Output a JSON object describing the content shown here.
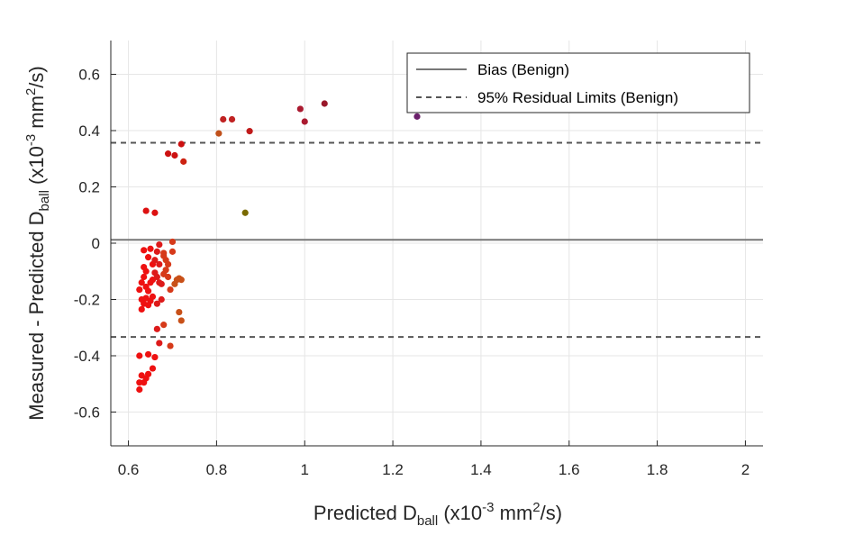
{
  "chart_data": {
    "type": "scatter",
    "title": "",
    "xlabel": {
      "main": "Predicted D",
      "sub": "ball",
      "units_pre": " (x10",
      "exp": "-3",
      "units_mid": " mm",
      "exp2": "2",
      "units_post": "/s)"
    },
    "ylabel": {
      "main": "Measured - Predicted D",
      "sub": "ball",
      "units_pre": " (x10",
      "exp": "-3",
      "units_mid": " mm",
      "exp2": "2",
      "units_post": "/s)"
    },
    "xlim": [
      0.56,
      2.04
    ],
    "ylim": [
      -0.72,
      0.72
    ],
    "xticks": [
      0.6,
      0.8,
      1,
      1.2,
      1.4,
      1.6,
      1.8,
      2
    ],
    "xtick_labels": [
      "0.6",
      "0.8",
      "1",
      "1.2",
      "1.4",
      "1.6",
      "1.8",
      "2"
    ],
    "yticks": [
      -0.6,
      -0.4,
      -0.2,
      0,
      0.2,
      0.4,
      0.6
    ],
    "ytick_labels": [
      "-0.6",
      "-0.4",
      "-0.2",
      "0",
      "0.2",
      "0.4",
      "0.6"
    ],
    "grid": true,
    "legend_position": "top-right",
    "reference_lines": [
      {
        "name": "Bias (Benign)",
        "y": 0.012,
        "style": "solid",
        "color": "#777777"
      },
      {
        "name": "95% Residual Limits (Benign)",
        "y": [
          0.357,
          -0.333
        ],
        "style": "dashed",
        "color": "#555555"
      }
    ],
    "points": [
      [
        0.64,
        0.115,
        "#dd1111"
      ],
      [
        0.66,
        0.108,
        "#dd1111"
      ],
      [
        0.865,
        0.108,
        "#7a6a00"
      ],
      [
        0.69,
        0.318,
        "#cc1111"
      ],
      [
        0.705,
        0.312,
        "#cc1111"
      ],
      [
        0.72,
        0.352,
        "#cc1111"
      ],
      [
        0.725,
        0.29,
        "#cc2211"
      ],
      [
        0.805,
        0.39,
        "#c0501a"
      ],
      [
        0.815,
        0.44,
        "#c02222"
      ],
      [
        0.835,
        0.44,
        "#c02222"
      ],
      [
        0.875,
        0.398,
        "#c01a1a"
      ],
      [
        0.99,
        0.477,
        "#aa1a30"
      ],
      [
        1.0,
        0.432,
        "#aa1a30"
      ],
      [
        1.045,
        0.496,
        "#99182a"
      ],
      [
        1.255,
        0.45,
        "#6a1f6a"
      ],
      [
        0.635,
        -0.025,
        "#ee1111"
      ],
      [
        0.65,
        -0.02,
        "#ee1111"
      ],
      [
        0.67,
        -0.005,
        "#dd1a1a"
      ],
      [
        0.7,
        0.005,
        "#d63a1a"
      ],
      [
        0.635,
        -0.085,
        "#ee1111"
      ],
      [
        0.64,
        -0.1,
        "#ee1111"
      ],
      [
        0.645,
        -0.05,
        "#ee1111"
      ],
      [
        0.655,
        -0.075,
        "#ee1111"
      ],
      [
        0.66,
        -0.06,
        "#dd1a1a"
      ],
      [
        0.665,
        -0.03,
        "#dd1a1a"
      ],
      [
        0.67,
        -0.075,
        "#dd1a1a"
      ],
      [
        0.68,
        -0.045,
        "#d63a1a"
      ],
      [
        0.685,
        -0.06,
        "#d63a1a"
      ],
      [
        0.69,
        -0.075,
        "#d63a1a"
      ],
      [
        0.7,
        -0.03,
        "#d63a1a"
      ],
      [
        0.68,
        -0.035,
        "#d63a1a"
      ],
      [
        0.625,
        -0.165,
        "#ee1111"
      ],
      [
        0.63,
        -0.14,
        "#ee1111"
      ],
      [
        0.635,
        -0.12,
        "#ee1111"
      ],
      [
        0.64,
        -0.155,
        "#ee1111"
      ],
      [
        0.645,
        -0.17,
        "#ee1111"
      ],
      [
        0.65,
        -0.14,
        "#ee1111"
      ],
      [
        0.655,
        -0.13,
        "#ee1111"
      ],
      [
        0.66,
        -0.105,
        "#dd1a1a"
      ],
      [
        0.665,
        -0.12,
        "#dd1a1a"
      ],
      [
        0.67,
        -0.14,
        "#dd1a1a"
      ],
      [
        0.675,
        -0.145,
        "#dd1a1a"
      ],
      [
        0.68,
        -0.11,
        "#d63a1a"
      ],
      [
        0.685,
        -0.095,
        "#d63a1a"
      ],
      [
        0.69,
        -0.12,
        "#d63a1a"
      ],
      [
        0.695,
        -0.165,
        "#d63a1a"
      ],
      [
        0.71,
        -0.13,
        "#c85018"
      ],
      [
        0.715,
        -0.125,
        "#c85018"
      ],
      [
        0.72,
        -0.13,
        "#c85018"
      ],
      [
        0.705,
        -0.145,
        "#c85018"
      ],
      [
        0.63,
        -0.2,
        "#ee1111"
      ],
      [
        0.635,
        -0.215,
        "#ee1111"
      ],
      [
        0.64,
        -0.195,
        "#ee1111"
      ],
      [
        0.645,
        -0.22,
        "#ee1111"
      ],
      [
        0.65,
        -0.205,
        "#ee1111"
      ],
      [
        0.655,
        -0.19,
        "#ee1111"
      ],
      [
        0.63,
        -0.235,
        "#ee1111"
      ],
      [
        0.665,
        -0.215,
        "#dd1a1a"
      ],
      [
        0.675,
        -0.2,
        "#dd1a1a"
      ],
      [
        0.715,
        -0.245,
        "#c85018"
      ],
      [
        0.72,
        -0.275,
        "#c85018"
      ],
      [
        0.68,
        -0.29,
        "#d63a1a"
      ],
      [
        0.665,
        -0.305,
        "#dd1a1a"
      ],
      [
        0.67,
        -0.355,
        "#dd1a1a"
      ],
      [
        0.695,
        -0.365,
        "#d63a1a"
      ],
      [
        0.625,
        -0.4,
        "#ee1111"
      ],
      [
        0.645,
        -0.395,
        "#ee1111"
      ],
      [
        0.66,
        -0.405,
        "#ee1111"
      ],
      [
        0.655,
        -0.445,
        "#ee1111"
      ],
      [
        0.645,
        -0.465,
        "#ee1111"
      ],
      [
        0.63,
        -0.47,
        "#ee1111"
      ],
      [
        0.64,
        -0.48,
        "#ee1111"
      ],
      [
        0.635,
        -0.495,
        "#ee1111"
      ],
      [
        0.625,
        -0.495,
        "#ee1111"
      ],
      [
        0.625,
        -0.52,
        "#ee1111"
      ]
    ]
  }
}
